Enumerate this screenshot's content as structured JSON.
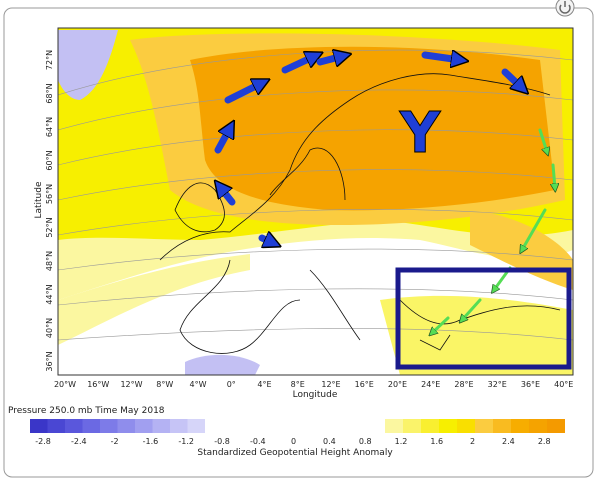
{
  "title": "Pressure 250.0 mb Time May 2018",
  "map": {
    "y_axis_label": "Latitude",
    "x_axis_label": "Longitude",
    "lat_labels": [
      "72°N",
      "68°N",
      "64°N",
      "60°N",
      "56°N",
      "52°N",
      "48°N",
      "44°N",
      "40°N",
      "36°N"
    ],
    "lon_labels": [
      "20°W",
      "16°W",
      "12°W",
      "8°W",
      "4°W",
      "0°",
      "4°E",
      "8°E",
      "12°E",
      "16°E",
      "20°E",
      "24°E",
      "28°E",
      "32°E",
      "36°E",
      "40°E"
    ],
    "annotation": "Y"
  },
  "colorbar": {
    "labels": [
      "-2.8",
      "-2.4",
      "-2",
      "-1.6",
      "-1.2",
      "-0.8",
      "-0.4",
      "0",
      "0.4",
      "0.8",
      "1.2",
      "1.6",
      "2",
      "2.4",
      "2.8"
    ],
    "caption": "Standardized Geopotential Height Anomaly"
  }
}
